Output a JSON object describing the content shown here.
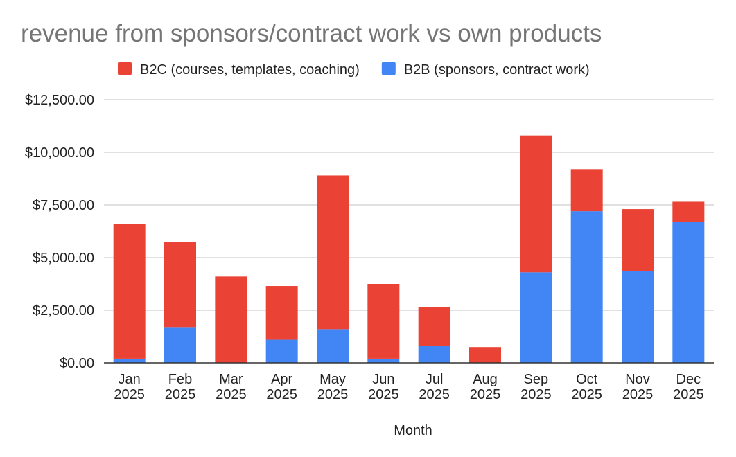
{
  "chart_data": {
    "type": "bar",
    "stacked": true,
    "title": "revenue from sponsors/contract work vs own products",
    "xlabel": "Month",
    "ylabel": "",
    "categories": [
      [
        "Jan",
        "2025"
      ],
      [
        "Feb",
        "2025"
      ],
      [
        "Mar",
        "2025"
      ],
      [
        "Apr",
        "2025"
      ],
      [
        "May",
        "2025"
      ],
      [
        "Jun",
        "2025"
      ],
      [
        "Jul",
        "2025"
      ],
      [
        "Aug",
        "2025"
      ],
      [
        "Sep",
        "2025"
      ],
      [
        "Oct",
        "2025"
      ],
      [
        "Nov",
        "2025"
      ],
      [
        "Dec",
        "2025"
      ]
    ],
    "series": [
      {
        "name": "B2B (sponsors, contract work)",
        "color": "#4285f4",
        "values": [
          200,
          1700,
          0,
          1100,
          1600,
          200,
          800,
          0,
          4300,
          7200,
          4350,
          6700
        ]
      },
      {
        "name": "B2C (courses, templates, coaching)",
        "color": "#ea4335",
        "values": [
          6400,
          4050,
          4100,
          2550,
          7300,
          3550,
          1850,
          750,
          6500,
          2000,
          2950,
          950
        ]
      }
    ],
    "legend": {
      "position": "top",
      "order": [
        "B2C (courses, templates, coaching)",
        "B2B (sponsors, contract work)"
      ]
    },
    "ylim": [
      0,
      12500
    ],
    "yticks": [
      0,
      2500,
      5000,
      7500,
      10000,
      12500
    ],
    "ytick_labels": [
      "$0.00",
      "$2,500.00",
      "$5,000.00",
      "$7,500.00",
      "$10,000.00",
      "$12,500.00"
    ],
    "grid": true
  }
}
